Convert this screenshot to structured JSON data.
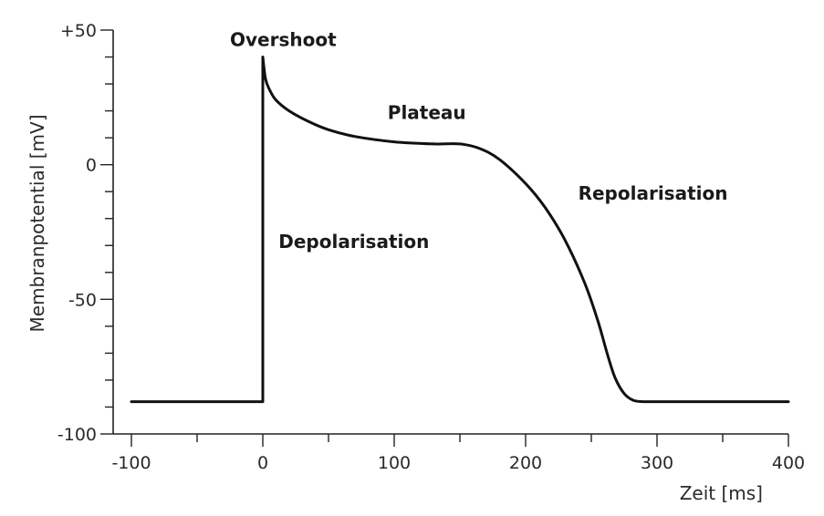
{
  "chart_data": {
    "type": "line",
    "title": "",
    "xlabel": "Zeit [ms]",
    "ylabel": "Membranpotential [mV]",
    "xlim": [
      -100,
      400
    ],
    "ylim": [
      -100,
      50
    ],
    "x_ticks": [
      -100,
      0,
      100,
      200,
      300,
      400
    ],
    "x_tick_labels": [
      "-100",
      "0",
      "100",
      "200",
      "300",
      "400"
    ],
    "y_ticks": [
      50,
      0,
      -50,
      -100
    ],
    "y_tick_labels": [
      "+50",
      "0",
      "-50",
      "-100"
    ],
    "grid": false,
    "line_color": "#111111",
    "series": [
      {
        "x": [
          -100,
          0,
          0,
          2,
          5,
          10,
          20,
          35,
          50,
          70,
          100,
          130,
          150,
          165,
          180,
          200,
          215,
          230,
          245,
          255,
          262,
          268,
          275,
          282,
          290,
          300,
          350,
          400
        ],
        "y": [
          -88,
          -88,
          40,
          32,
          28,
          24,
          20,
          16,
          13,
          10.5,
          8.5,
          7.7,
          7.7,
          6,
          2,
          -7,
          -16,
          -28,
          -44,
          -58,
          -70,
          -79,
          -85,
          -87.5,
          -88,
          -88,
          -88,
          -88
        ]
      }
    ],
    "annotations": [
      {
        "text": "Overshoot",
        "x": -25,
        "y": 44
      },
      {
        "text": "Plateau",
        "x": 95,
        "y": 17
      },
      {
        "text": "Repolarisation",
        "x": 240,
        "y": -13
      },
      {
        "text": "Depolarisation",
        "x": 12,
        "y": -31
      }
    ]
  }
}
